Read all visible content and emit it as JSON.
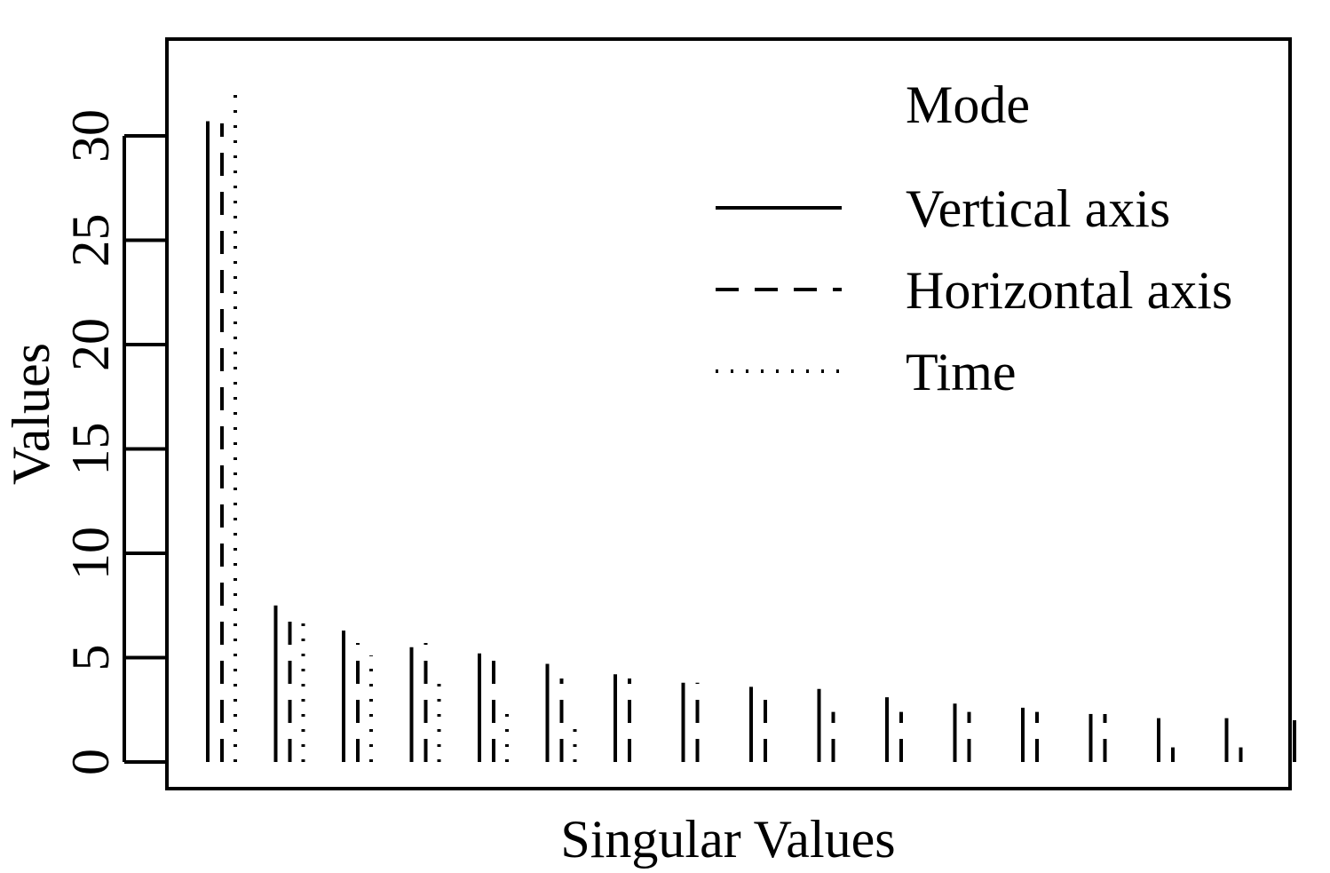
{
  "chart_data": {
    "type": "bar",
    "title": "",
    "xlabel": "Singular Values",
    "ylabel": "Values",
    "ylim": [
      0,
      35
    ],
    "yticks": [
      0,
      5,
      10,
      15,
      20,
      25,
      30
    ],
    "grid": false,
    "legend": {
      "title": "Mode",
      "position": "top-right",
      "entries": [
        "Vertical axis",
        "Horizontal axis",
        "Time"
      ]
    },
    "series": [
      {
        "name": "Vertical axis",
        "line_style": "solid",
        "values": [
          30.7,
          7.5,
          6.3,
          5.5,
          5.2,
          4.7,
          4.2,
          3.8,
          3.6,
          3.5,
          3.1,
          2.8,
          2.6,
          2.3,
          2.1,
          2.1,
          2.0
        ]
      },
      {
        "name": "Horizontal axis",
        "line_style": "dashed",
        "values": [
          30.6,
          7.4,
          5.7,
          5.7,
          5.3,
          4.0,
          4.0,
          3.8,
          3.6,
          2.4,
          2.4,
          2.4,
          2.4,
          2.3,
          0.7,
          0.7,
          0.0
        ]
      },
      {
        "name": "Time",
        "line_style": "dotted",
        "values": [
          32.5,
          6.8,
          5.1,
          4.3,
          2.7,
          1.8,
          0,
          0,
          0,
          0,
          0,
          0,
          0,
          0,
          0,
          0,
          0
        ]
      }
    ]
  }
}
